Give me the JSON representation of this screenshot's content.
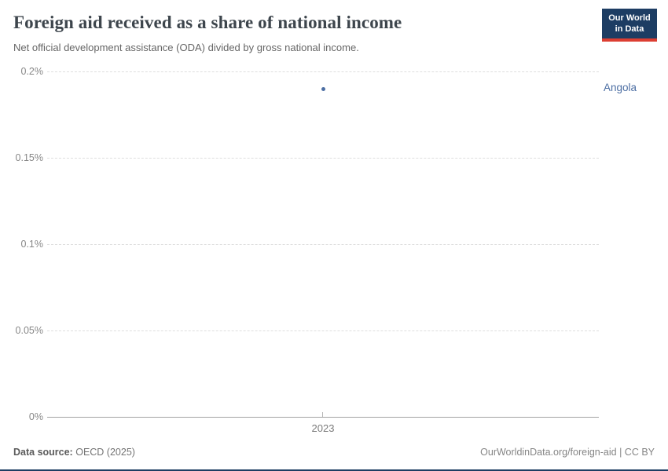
{
  "header": {
    "title": "Foreign aid received as a share of national income",
    "subtitle": "Net official development assistance (ODA) divided by gross national income.",
    "logo": {
      "line1": "Our World",
      "line2": "in Data",
      "bg_color": "#1d3d63",
      "accent_color": "#dc3e32"
    }
  },
  "chart_data": {
    "type": "scatter",
    "title": "Foreign aid received as a share of national income",
    "subtitle": "Net official development assistance (ODA) divided by gross national income.",
    "x": [
      2023
    ],
    "series": [
      {
        "name": "Angola",
        "color": "#4c6ea3",
        "values": [
          0.19
        ]
      }
    ],
    "unit": "%",
    "xlabel": "",
    "ylabel": "",
    "ylim": [
      0,
      0.2
    ],
    "y_ticks": [
      "0%",
      "0.05%",
      "0.1%",
      "0.15%",
      "0.2%"
    ],
    "x_ticks": [
      "2023"
    ],
    "grid": "horizontal-dashed",
    "legend_position": "entity-label-right"
  },
  "footer": {
    "datasource_label": "Data source:",
    "datasource_value": "OECD (2025)",
    "credit": "OurWorldinData.org/foreign-aid | CC BY"
  }
}
